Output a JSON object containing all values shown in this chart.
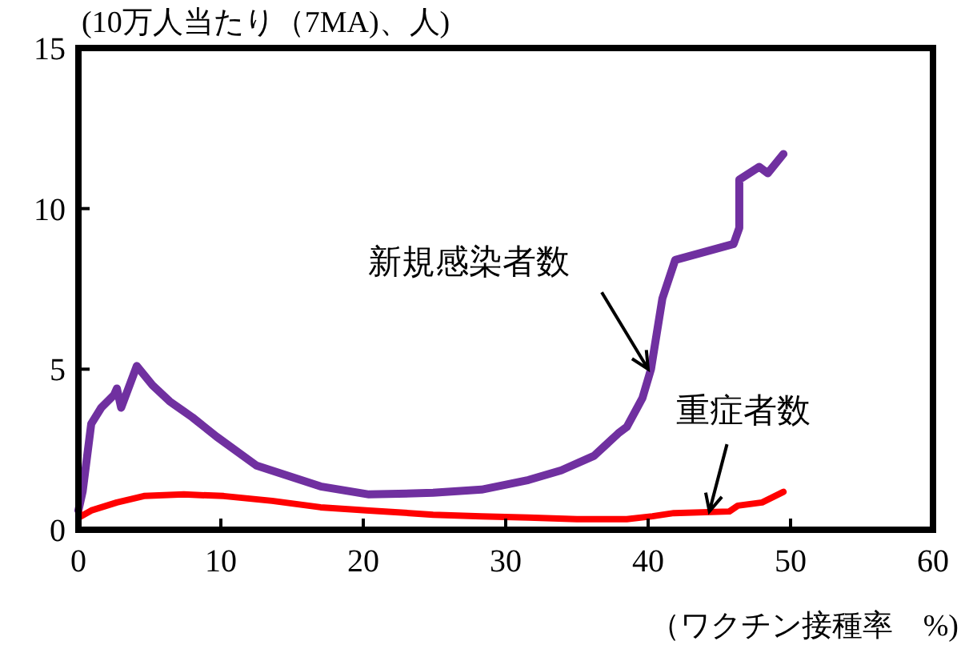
{
  "chart_data": {
    "type": "line",
    "ylabel": "(10万人当たり（7MA)、人)",
    "xlabel": "（ワクチン接種率　%)",
    "xlim": [
      0,
      60
    ],
    "xticks": [
      0,
      10,
      20,
      30,
      40,
      50,
      60
    ],
    "ylim": [
      0,
      15
    ],
    "yticks": [
      0,
      5,
      10,
      15
    ],
    "grid": false,
    "marker": "none",
    "line_style": "solid",
    "series": [
      {
        "color": "#7030a0",
        "x": [
          0,
          0.3,
          0.9,
          1.6,
          2.5,
          2.7,
          3.0,
          4.1,
          5.2,
          6.4,
          8,
          9.7,
          12.5,
          17,
          20.4,
          24.9,
          28.3,
          31.6,
          33.9,
          36.2,
          37.9,
          38.5,
          39.6,
          40.2,
          41,
          41.9,
          46,
          46.4,
          46.4,
          47.8,
          48.4,
          49.5
        ],
        "values": [
          0.6,
          1.2,
          3.3,
          3.8,
          4.2,
          4.4,
          3.8,
          5.1,
          4.5,
          4.0,
          3.5,
          2.9,
          2.0,
          1.35,
          1.1,
          1.15,
          1.25,
          1.55,
          1.85,
          2.3,
          3.0,
          3.2,
          4.1,
          5.0,
          7.2,
          8.4,
          8.9,
          9.4,
          10.9,
          11.3,
          11.1,
          11.7
        ]
      },
      {
        "color": "#ff0000",
        "x": [
          0,
          0.1,
          0.9,
          2.7,
          4.6,
          7.4,
          10.2,
          13.6,
          17,
          20.4,
          24.9,
          28.3,
          31.6,
          35,
          38.5,
          40.3,
          41.8,
          45.7,
          46.3,
          48,
          49.5
        ],
        "values": [
          0.65,
          0.4,
          0.6,
          0.85,
          1.05,
          1.1,
          1.05,
          0.9,
          0.7,
          0.6,
          0.47,
          0.42,
          0.38,
          0.33,
          0.33,
          0.42,
          0.52,
          0.57,
          0.75,
          0.85,
          1.18
        ]
      }
    ],
    "annotations": [
      {
        "text": "新規感染者数",
        "x": 40,
        "y": 5.0
      },
      {
        "text": "重症者数",
        "x": 44.3,
        "y": 0.57
      }
    ]
  }
}
